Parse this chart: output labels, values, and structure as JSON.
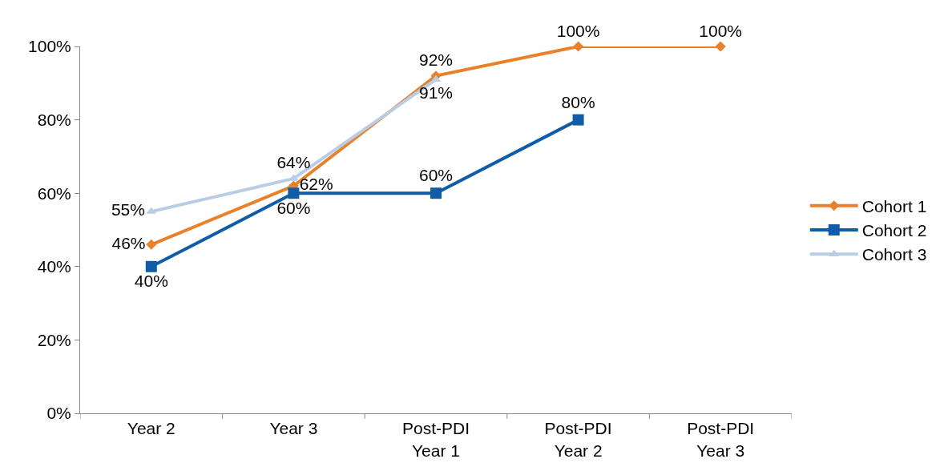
{
  "chart_data": {
    "type": "line",
    "categories": [
      "Year 2",
      "Year 3",
      "Post-PDI Year 1",
      "Post-PDI Year 2",
      "Post-PDI Year 3"
    ],
    "series": [
      {
        "name": "Cohort 1",
        "color": "#e8812a",
        "marker": "diamond",
        "values": [
          46,
          62,
          92,
          100,
          100
        ],
        "value_labels": [
          "46%",
          "62%",
          "92%",
          "100%",
          "100%"
        ]
      },
      {
        "name": "Cohort 2",
        "color": "#115ca6",
        "marker": "square",
        "values": [
          40,
          60,
          60,
          80,
          null
        ],
        "value_labels": [
          "40%",
          "60%",
          "60%",
          "80%",
          null
        ]
      },
      {
        "name": "Cohort 3",
        "color": "#b9cde4",
        "marker": "triangle",
        "values": [
          55,
          64,
          91,
          null,
          null
        ],
        "value_labels": [
          "55%",
          "64%",
          "91%",
          null,
          null
        ]
      }
    ],
    "ylim": [
      0,
      100
    ],
    "yticks": [
      {
        "value": 0,
        "label": "0%"
      },
      {
        "value": 20,
        "label": "20%"
      },
      {
        "value": 40,
        "label": "40%"
      },
      {
        "value": 60,
        "label": "60%"
      },
      {
        "value": 80,
        "label": "80%"
      },
      {
        "value": 100,
        "label": "100%"
      }
    ],
    "legend": "right",
    "line_style": "solid"
  }
}
